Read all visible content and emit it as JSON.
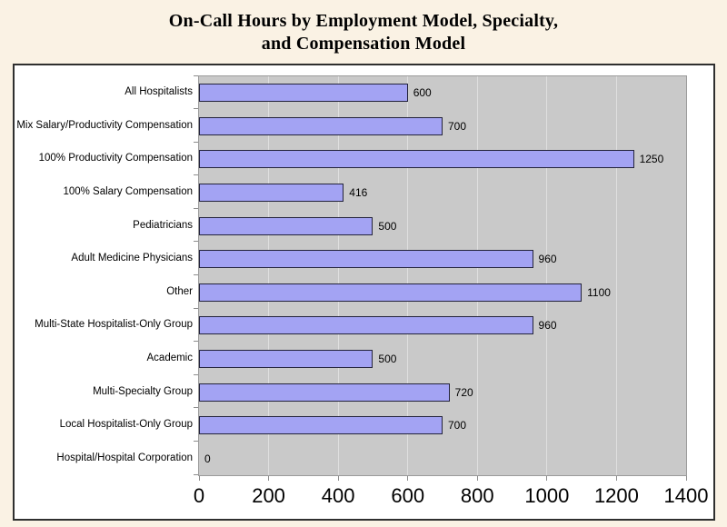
{
  "title": {
    "line1": "On-Call Hours by Employment Model, Specialty,",
    "line2": "and Compensation Model"
  },
  "chart_data": {
    "type": "bar",
    "orientation": "horizontal",
    "title": "On-Call Hours by Employment Model, Specialty, and Compensation Model",
    "categories": [
      "All Hospitalists",
      "Mix Salary/Productivity Compensation",
      "100% Productivity Compensation",
      "100% Salary Compensation",
      "Pediatricians",
      "Adult Medicine Physicians",
      "Other",
      "Multi-State Hospitalist-Only Group",
      "Academic",
      "Multi-Specialty Group",
      "Local Hospitalist-Only Group",
      "Hospital/Hospital Corporation"
    ],
    "values": [
      600,
      700,
      1250,
      416,
      500,
      960,
      1100,
      960,
      500,
      720,
      700,
      0
    ],
    "data_labels": [
      "600",
      "700",
      "1250",
      "416",
      "500",
      "960",
      "1100",
      "960",
      "500",
      "720",
      "700",
      "0"
    ],
    "xlabel": "",
    "ylabel": "",
    "xlim": [
      0,
      1400
    ],
    "x_ticks": [
      0,
      200,
      400,
      600,
      800,
      1000,
      1200,
      1400
    ],
    "grid": "vertical-major",
    "legend": "none",
    "colors": {
      "page_bg": "#FAF2E4",
      "chart_bg": "#FFFFFF",
      "frame_border": "#2F2F2F",
      "plot_bg": "#C9C9C9",
      "plot_border": "#9B9B9B",
      "gridline": "#DFDFDF",
      "bar_fill": "#A3A3F3",
      "bar_border": "#23233B",
      "tick": "#8C8C8C",
      "text": "#000000"
    }
  }
}
